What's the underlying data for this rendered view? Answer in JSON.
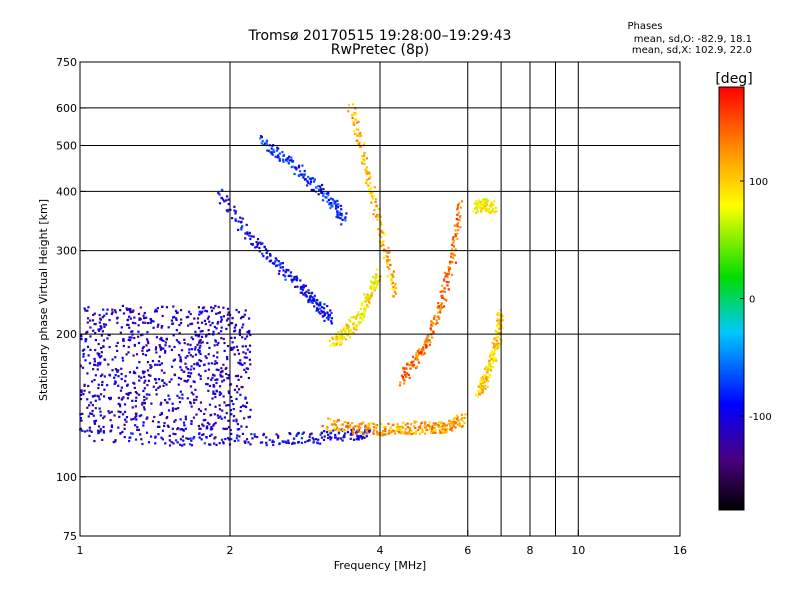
{
  "chart_data": {
    "type": "scatter",
    "title": "Tromsø 20170515 19:28:00–19:29:43",
    "subtitle": "RwPretec (8p)",
    "xlabel": "Frequency [MHz]",
    "ylabel": "Stationary phase Virtual Height [km]",
    "x_scale": "log",
    "y_scale": "log",
    "xlim": [
      1,
      16
    ],
    "ylim": [
      75,
      750
    ],
    "x_ticks": [
      1,
      2,
      4,
      6,
      8,
      10,
      16
    ],
    "x_tick_labels": [
      "1",
      "2",
      "4",
      "6",
      "8",
      "10",
      "16"
    ],
    "y_ticks": [
      75,
      100,
      200,
      300,
      400,
      500,
      600,
      750
    ],
    "y_tick_labels": [
      "75",
      "100",
      "200",
      "300",
      "400",
      "500",
      "600",
      "750"
    ],
    "grid": true,
    "stats": {
      "heading": "Phases",
      "line_o": "mean, sd,O: -82.9, 18.1",
      "line_x": "mean, sd,X: 102.9, 22.0"
    },
    "colorbar": {
      "label": "[deg]",
      "range": [
        -180,
        180
      ],
      "ticks": [
        100,
        0,
        -100
      ],
      "tick_labels": [
        "100",
        "0",
        "-100"
      ]
    },
    "traces": [
      {
        "x": [
          1.0,
          1.5,
          1.9,
          2.5,
          3.0,
          3.5,
          3.8
        ],
        "y": [
          122,
          120,
          120,
          120,
          121,
          123,
          124
        ],
        "phase": -100
      },
      {
        "x": [
          3.1,
          3.5,
          3.9,
          4.3,
          4.7,
          5.1,
          5.5,
          5.9
        ],
        "y": [
          129,
          127,
          126,
          126,
          127,
          127,
          128,
          132
        ],
        "phase": 120
      },
      {
        "x": [
          1.9,
          2.2,
          2.5,
          2.8,
          3.0,
          3.2
        ],
        "y": [
          400,
          320,
          280,
          250,
          230,
          215
        ],
        "phase": -95
      },
      {
        "x": [
          2.3,
          2.6,
          2.9,
          3.2,
          3.4
        ],
        "y": [
          510,
          470,
          420,
          380,
          350
        ],
        "phase": -80
      },
      {
        "x": [
          3.5,
          3.7,
          3.9,
          4.1,
          4.3
        ],
        "y": [
          600,
          480,
          380,
          300,
          240
        ],
        "phase": 110
      },
      {
        "x": [
          3.2,
          3.4,
          3.6,
          3.8,
          4.0
        ],
        "y": [
          190,
          200,
          215,
          240,
          270
        ],
        "phase": 90
      },
      {
        "x": [
          4.4,
          4.7,
          5.0,
          5.3,
          5.6,
          5.8
        ],
        "y": [
          160,
          175,
          195,
          230,
          290,
          380
        ],
        "phase": 140
      },
      {
        "x": [
          6.3,
          6.5,
          6.7,
          6.9,
          7.0
        ],
        "y": [
          150,
          160,
          175,
          195,
          220
        ],
        "phase": 100
      },
      {
        "x": [
          6.2,
          6.5,
          6.8
        ],
        "y": [
          370,
          375,
          368
        ],
        "phase": 80
      }
    ],
    "cloud": {
      "x_range": [
        1.0,
        2.2
      ],
      "y_range": [
        125,
        230
      ],
      "phase": -110
    }
  }
}
